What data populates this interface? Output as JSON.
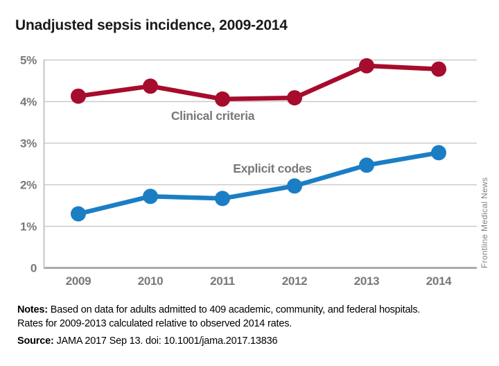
{
  "credit": "Frontline Medical News",
  "notes": {
    "label": "Notes:",
    "line1": "Based on data for adults admitted to 409 academic, community, and federal hospitals.",
    "line2": "Rates for 2009-2013 calculated relative to observed 2014 rates."
  },
  "source": {
    "label": "Source:",
    "text": "JAMA 2017 Sep 13. doi: 10.1001/jama.2017.13836"
  },
  "colors": {
    "clinical_red": "#a60c2c",
    "explicit_blue": "#1b7ec4",
    "axis_text_gray": "#77787b",
    "gridline_gray": "#c9cacb",
    "axis_line_gray": "#a9abac",
    "yaxis_line_gray": "#c5c6c8",
    "title_text": "#1a1a1a",
    "credit_gray": "#808285"
  },
  "chart_data": {
    "type": "line",
    "title": "Unadjusted sepsis incidence, 2009-2014",
    "x_labels": [
      "2009",
      "2010",
      "2011",
      "2012",
      "2013",
      "2014"
    ],
    "ylim": [
      0,
      5
    ],
    "ytick_labels": [
      "0",
      "1%",
      "2%",
      "3%",
      "4%",
      "5%"
    ],
    "grid": "horizontal",
    "legend": "inline-labels",
    "series": [
      {
        "name": "Clinical criteria",
        "color": "#a60c2c",
        "values": [
          4.13,
          4.37,
          4.06,
          4.09,
          4.86,
          4.78
        ]
      },
      {
        "name": "Explicit codes",
        "color": "#1b7ec4",
        "values": [
          1.3,
          1.72,
          1.67,
          1.97,
          2.47,
          2.77
        ]
      }
    ]
  }
}
